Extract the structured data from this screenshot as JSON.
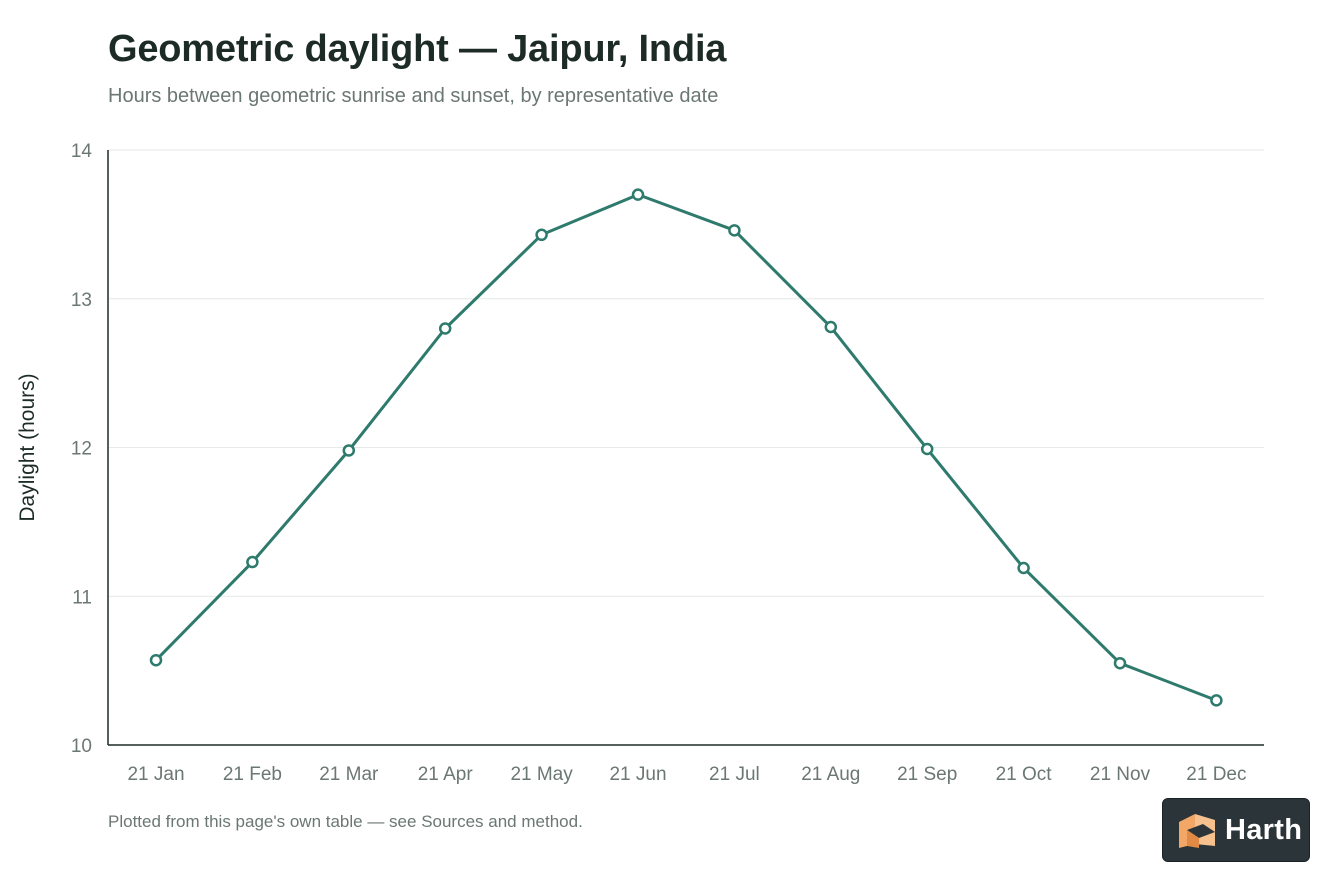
{
  "header": {
    "title": "Geometric daylight — Jaipur, India",
    "subtitle": "Hours between geometric sunrise and sunset, by representative date"
  },
  "footer": {
    "note": "Plotted from this page's own table — see Sources and method."
  },
  "brand": {
    "name": "Harth",
    "icon": "harth-logo-icon"
  },
  "colors": {
    "line": "#2e7a6c",
    "title": "#1d2b26",
    "muted": "#6b7774"
  },
  "chart_data": {
    "type": "line",
    "title": "Geometric daylight — Jaipur, India",
    "subtitle": "Hours between geometric sunrise and sunset, by representative date",
    "xlabel": "",
    "ylabel": "Daylight (hours)",
    "ylim": [
      10,
      14
    ],
    "yticks": [
      10,
      11,
      12,
      13,
      14
    ],
    "grid": true,
    "legend": "none",
    "categories": [
      "21 Jan",
      "21 Feb",
      "21 Mar",
      "21 Apr",
      "21 May",
      "21 Jun",
      "21 Jul",
      "21 Aug",
      "21 Sep",
      "21 Oct",
      "21 Nov",
      "21 Dec"
    ],
    "series": [
      {
        "values": [
          10.57,
          11.23,
          11.98,
          12.8,
          13.43,
          13.7,
          13.46,
          12.81,
          11.99,
          11.19,
          10.55,
          10.3
        ]
      }
    ]
  }
}
